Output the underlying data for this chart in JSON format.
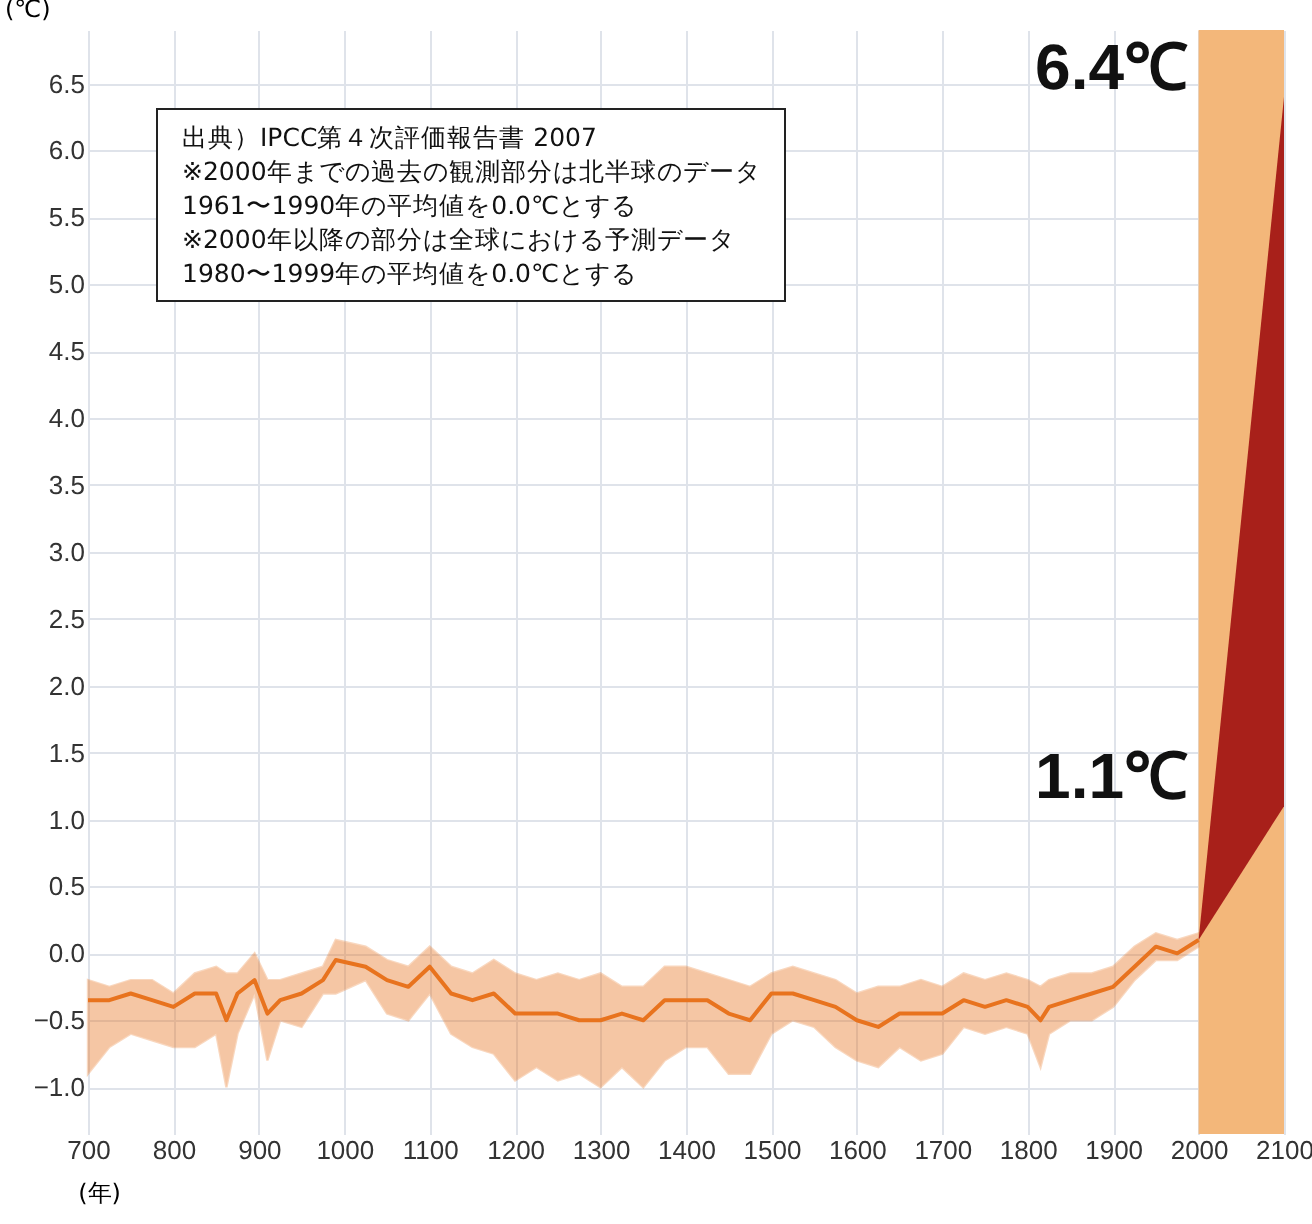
{
  "chart_data": {
    "type": "line",
    "ylabel": "(℃)",
    "xlabel": "(年)",
    "xlim": [
      700,
      2100
    ],
    "xticks": [
      700,
      800,
      900,
      1000,
      1100,
      1200,
      1300,
      1400,
      1500,
      1600,
      1700,
      1800,
      1900,
      2000,
      2100
    ],
    "ylim": [
      -1.35,
      6.9
    ],
    "yticks": [
      {
        "value": -1,
        "label": "−1.0"
      },
      {
        "value": -0.5,
        "label": "−0.5"
      },
      {
        "value": 0,
        "label": "0.0"
      },
      {
        "value": 0.5,
        "label": "0.5"
      },
      {
        "value": 1,
        "label": "1.0"
      },
      {
        "value": 1.5,
        "label": "1.5"
      },
      {
        "value": 2,
        "label": "2.0"
      },
      {
        "value": 2.5,
        "label": "2.5"
      },
      {
        "value": 3,
        "label": "3.0"
      },
      {
        "value": 3.5,
        "label": "3.5"
      },
      {
        "value": 4,
        "label": "4.0"
      },
      {
        "value": 4.5,
        "label": "4.5"
      },
      {
        "value": 5,
        "label": "5.0"
      },
      {
        "value": 5.5,
        "label": "5.5"
      },
      {
        "value": 6,
        "label": "6.0"
      },
      {
        "value": 6.5,
        "label": "6.5"
      }
    ],
    "grid": true,
    "series": [
      {
        "color": "#e8731e",
        "x": [
          700,
          725,
          750,
          775,
          800,
          825,
          850,
          862,
          875,
          895,
          910,
          925,
          950,
          975,
          990,
          1025,
          1050,
          1075,
          1100,
          1125,
          1150,
          1175,
          1200,
          1225,
          1250,
          1275,
          1300,
          1325,
          1350,
          1375,
          1400,
          1425,
          1450,
          1475,
          1500,
          1525,
          1550,
          1575,
          1600,
          1625,
          1650,
          1675,
          1700,
          1725,
          1750,
          1775,
          1800,
          1815,
          1825,
          1850,
          1875,
          1900,
          1925,
          1950,
          1975,
          2000
        ],
        "values": [
          -0.35,
          -0.35,
          -0.3,
          -0.35,
          -0.4,
          -0.3,
          -0.3,
          -0.5,
          -0.3,
          -0.2,
          -0.45,
          -0.35,
          -0.3,
          -0.2,
          -0.05,
          -0.1,
          -0.2,
          -0.25,
          -0.1,
          -0.3,
          -0.35,
          -0.3,
          -0.45,
          -0.45,
          -0.45,
          -0.5,
          -0.5,
          -0.45,
          -0.5,
          -0.35,
          -0.35,
          -0.35,
          -0.45,
          -0.5,
          -0.3,
          -0.3,
          -0.35,
          -0.4,
          -0.5,
          -0.55,
          -0.45,
          -0.45,
          -0.45,
          -0.35,
          -0.4,
          -0.35,
          -0.4,
          -0.5,
          -0.4,
          -0.35,
          -0.3,
          -0.25,
          -0.1,
          0.05,
          0.0,
          0.1
        ],
        "lower": [
          -0.9,
          -0.7,
          -0.6,
          -0.65,
          -0.7,
          -0.7,
          -0.6,
          -1.0,
          -0.6,
          -0.3,
          -0.8,
          -0.5,
          -0.55,
          -0.3,
          -0.3,
          -0.2,
          -0.45,
          -0.5,
          -0.3,
          -0.6,
          -0.7,
          -0.75,
          -0.95,
          -0.85,
          -0.95,
          -0.9,
          -1.0,
          -0.85,
          -1.0,
          -0.8,
          -0.7,
          -0.7,
          -0.9,
          -0.9,
          -0.6,
          -0.5,
          -0.55,
          -0.7,
          -0.8,
          -0.85,
          -0.7,
          -0.8,
          -0.75,
          -0.55,
          -0.6,
          -0.55,
          -0.6,
          -0.85,
          -0.6,
          -0.5,
          -0.5,
          -0.4,
          -0.2,
          -0.05,
          -0.05,
          0.05
        ],
        "upper": [
          -0.2,
          -0.25,
          -0.2,
          -0.2,
          -0.3,
          -0.15,
          -0.1,
          -0.15,
          -0.15,
          0.0,
          -0.2,
          -0.2,
          -0.15,
          -0.1,
          0.1,
          0.05,
          -0.05,
          -0.1,
          0.05,
          -0.1,
          -0.15,
          -0.05,
          -0.15,
          -0.2,
          -0.15,
          -0.2,
          -0.15,
          -0.25,
          -0.25,
          -0.1,
          -0.1,
          -0.15,
          -0.2,
          -0.25,
          -0.15,
          -0.1,
          -0.15,
          -0.2,
          -0.3,
          -0.25,
          -0.25,
          -0.2,
          -0.25,
          -0.15,
          -0.2,
          -0.15,
          -0.2,
          -0.25,
          -0.2,
          -0.15,
          -0.15,
          -0.1,
          0.05,
          0.15,
          0.1,
          0.15
        ]
      },
      {
        "color": "#a8201a",
        "x": [
          2000,
          2100
        ],
        "values": [
          null,
          null
        ],
        "lower": [
          0.1,
          1.1
        ],
        "upper": [
          0.1,
          6.4
        ]
      }
    ],
    "bands": [
      {
        "axis": "x",
        "from": 2000,
        "to": 2100,
        "color": "#f3b77a"
      }
    ],
    "annotations": [
      "出典）IPCC第４次評価報告書 2007",
      "※2000年までの過去の観測部分は北半球のデータ",
      "1961〜1990年の平均値を0.0℃とする",
      "※2000年以降の部分は全球における予測データ",
      "1980〜1999年の平均値を0.0℃とする",
      {
        "text": "6.4℃",
        "x": 2100,
        "y": 6.4
      },
      {
        "text": "1.1℃",
        "x": 2100,
        "y": 1.1
      }
    ]
  }
}
